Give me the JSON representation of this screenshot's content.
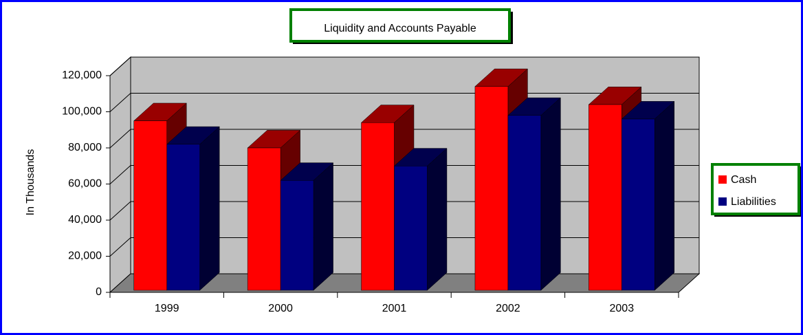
{
  "chart_data": {
    "type": "bar3d",
    "title": "Liquidity and Accounts Payable",
    "y_label": "In Thousands",
    "categories": [
      "1999",
      "2000",
      "2001",
      "2002",
      "2003"
    ],
    "series": [
      {
        "name": "Cash",
        "color": "#ff0000",
        "values": [
          95000,
          80000,
          94000,
          114000,
          104000
        ]
      },
      {
        "name": "Liabilities",
        "color": "#000080",
        "values": [
          82000,
          62000,
          70000,
          98000,
          96000
        ]
      }
    ],
    "ylim": [
      0,
      120000
    ],
    "yticks": [
      0,
      {
        "value": 20000,
        "label": "20,000"
      },
      {
        "value": 40000,
        "label": "40,000"
      },
      {
        "value": 60000,
        "label": "60,000"
      },
      {
        "value": 80000,
        "label": "80,000"
      },
      {
        "value": 100000,
        "label": "100,000"
      },
      {
        "value": 120000,
        "label": "120,000"
      }
    ],
    "grid": true,
    "legend": "right"
  }
}
